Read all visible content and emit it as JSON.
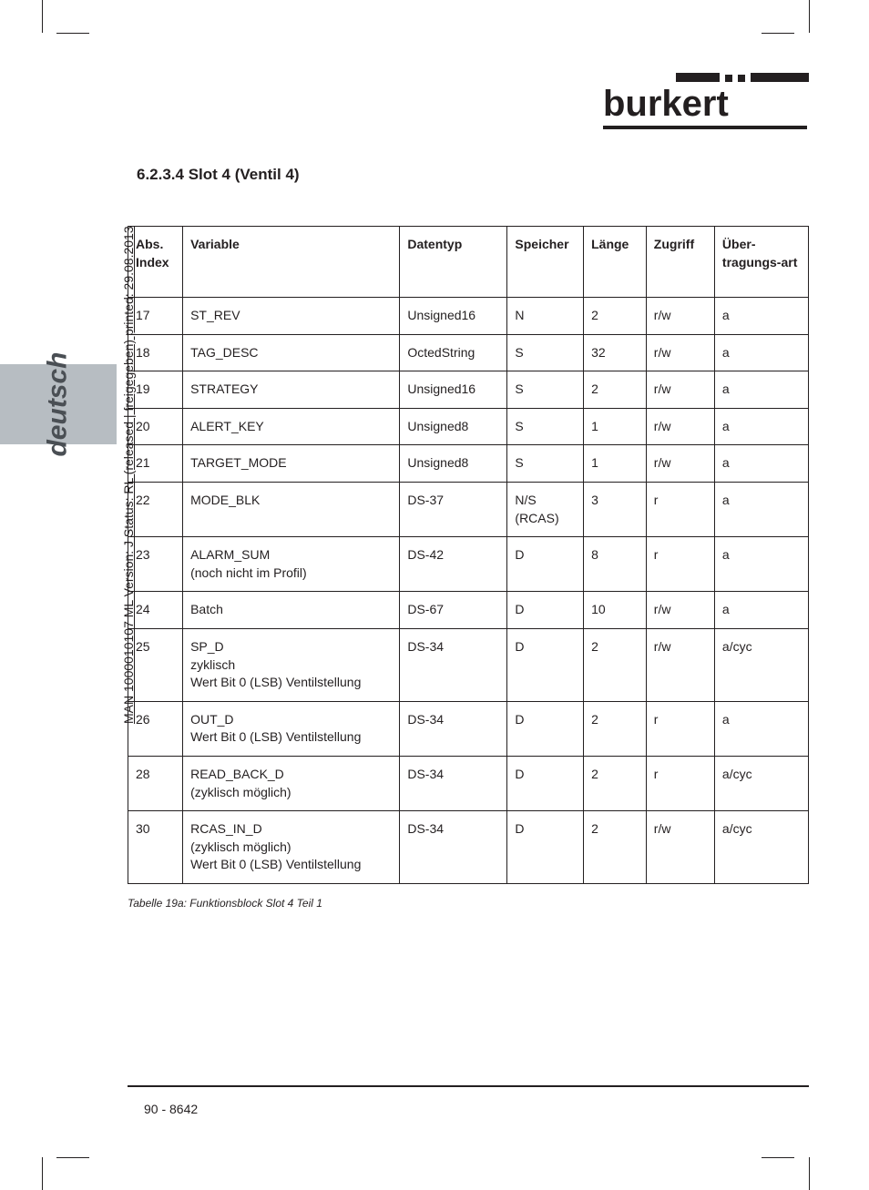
{
  "logo_text": "burkert",
  "side_tab": "deutsch",
  "vertical_meta": "MAN  1000010107  ML  Version: J  Status: RL (released | freigegeben)  printed: 29.08.2013",
  "section_heading": "6.2.3.4 Slot    4 (Ventil 4)",
  "table": {
    "columns": [
      "Abs. Index",
      "Variable",
      "Datentyp",
      "Speicher",
      "Länge",
      "Zugriff",
      "Über-tragungs-art"
    ],
    "rows": [
      [
        "17",
        "ST_REV",
        "Unsigned16",
        "N",
        "2",
        "r/w",
        "a"
      ],
      [
        "18",
        "TAG_DESC",
        "OctedString",
        "S",
        "32",
        "r/w",
        "a"
      ],
      [
        "19",
        "STRATEGY",
        "Unsigned16",
        "S",
        "2",
        "r/w",
        "a"
      ],
      [
        "20",
        "ALERT_KEY",
        "Unsigned8",
        "S",
        "1",
        "r/w",
        "a"
      ],
      [
        "21",
        "TARGET_MODE",
        "Unsigned8",
        "S",
        "1",
        "r/w",
        "a"
      ],
      [
        "22",
        "MODE_BLK",
        "DS-37",
        "N/S (RCAS)",
        "3",
        "r",
        "a"
      ],
      [
        "23",
        "ALARM_SUM\n(noch nicht im Profil)",
        "DS-42",
        "D",
        "8",
        "r",
        "a"
      ],
      [
        "24",
        "Batch",
        "DS-67",
        "D",
        "10",
        "r/w",
        "a"
      ],
      [
        "25",
        "SP_D\nzyklisch\nWert Bit 0 (LSB) Ventilstellung",
        "DS-34",
        "D",
        "2",
        "r/w",
        "a/cyc"
      ],
      [
        "26",
        "OUT_D\nWert Bit 0 (LSB) Ventilstellung",
        "DS-34",
        "D",
        "2",
        "r",
        "a"
      ],
      [
        "28",
        "READ_BACK_D\n(zyklisch möglich)",
        "DS-34",
        "D",
        "2",
        "r",
        "a/cyc"
      ],
      [
        "30",
        "RCAS_IN_D\n(zyklisch möglich)\nWert Bit 0 (LSB) Ventilstellung",
        "DS-34",
        "D",
        "2",
        "r/w",
        "a/cyc"
      ]
    ]
  },
  "caption": "Tabelle 19a: Funktionsblock Slot 4 Teil 1",
  "footer": "90   -   8642",
  "colors": {
    "text": "#231f20",
    "tab_bg": "#b7bdc2",
    "tab_text": "#4a4f54"
  }
}
